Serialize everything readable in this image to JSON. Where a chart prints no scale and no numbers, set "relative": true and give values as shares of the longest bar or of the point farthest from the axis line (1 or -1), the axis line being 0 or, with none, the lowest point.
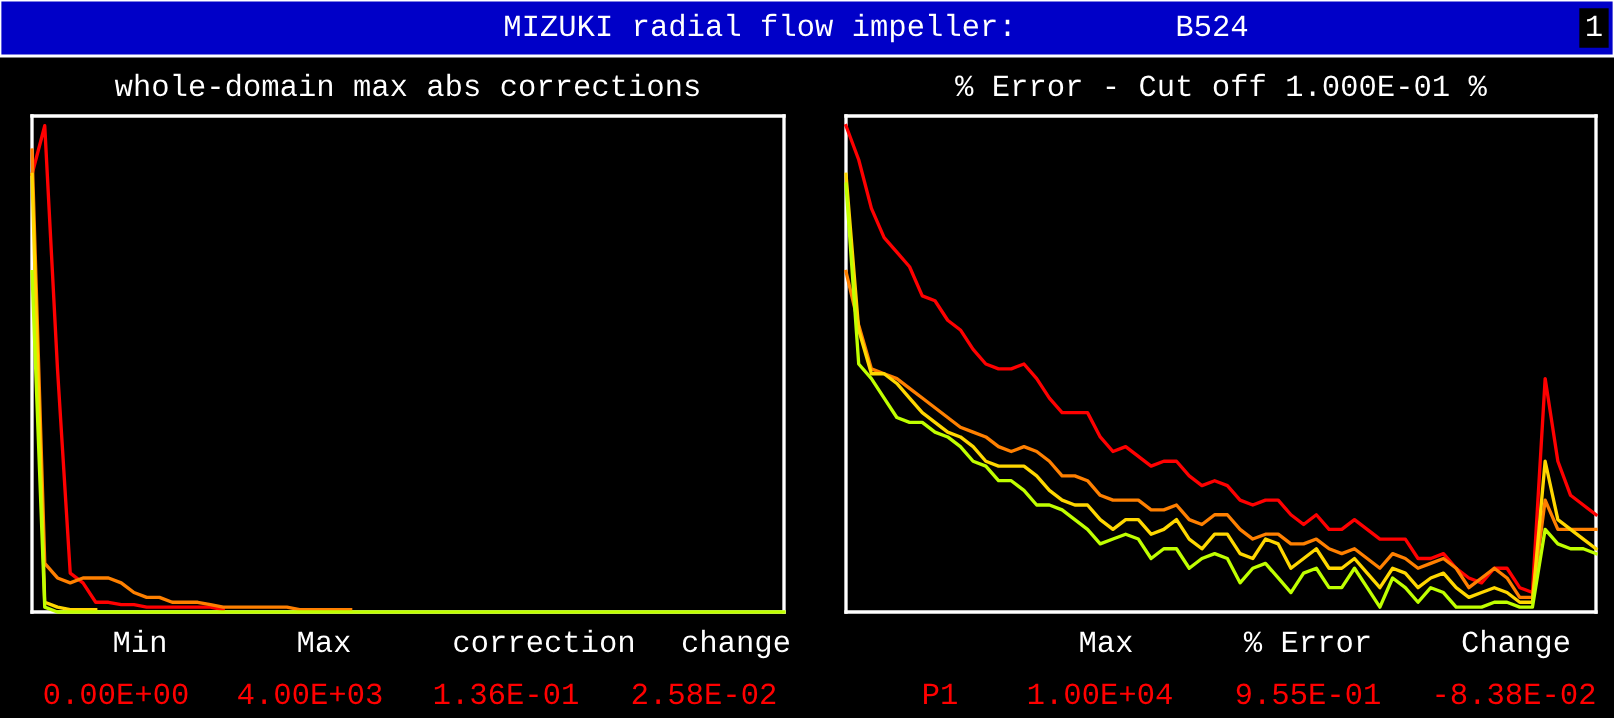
{
  "chart_data": [
    {
      "type": "line",
      "relative": true,
      "title": "whole-domain max abs corrections",
      "categories": [
        null,
        null,
        null,
        null,
        null,
        null,
        null,
        null,
        null,
        null,
        null,
        null,
        null,
        null,
        null,
        null,
        null,
        null,
        null,
        null,
        null,
        null,
        null,
        null,
        null,
        null,
        null,
        null,
        null,
        null,
        null,
        null,
        null,
        null,
        null,
        null,
        null,
        null,
        null,
        null,
        null,
        null,
        null,
        null,
        null,
        null,
        null,
        null,
        null,
        null,
        null,
        null,
        null,
        null,
        null,
        null,
        null,
        null,
        null,
        null
      ],
      "series": [
        {
          "color": "#ff0000",
          "values": [
            0.9,
            1.0,
            0.5,
            0.08,
            0.06,
            0.02,
            0.02,
            0.015,
            0.015,
            0.01,
            0.01,
            0.01,
            0.01,
            0.01,
            0.01,
            0.005,
            null,
            null,
            null,
            null,
            null,
            null,
            null,
            null,
            null,
            null,
            null,
            null,
            null,
            null,
            null,
            null,
            null,
            null,
            null,
            null,
            null,
            null,
            null,
            null,
            null,
            null,
            null,
            null,
            null,
            null,
            null,
            null,
            null,
            null,
            null,
            null,
            null,
            null,
            null,
            null,
            null,
            null,
            null,
            null
          ]
        },
        {
          "color": "#ff8000",
          "values": [
            0.95,
            0.1,
            0.07,
            0.06,
            0.07,
            0.07,
            0.07,
            0.06,
            0.04,
            0.03,
            0.03,
            0.02,
            0.02,
            0.02,
            0.015,
            0.01,
            0.01,
            0.01,
            0.01,
            0.01,
            0.01,
            0.005,
            0.005,
            0.005,
            0.005,
            0.005,
            null,
            null,
            null,
            null,
            null,
            null,
            null,
            null,
            null,
            null,
            null,
            null,
            null,
            null,
            null,
            null,
            null,
            null,
            null,
            null,
            null,
            null,
            null,
            null,
            null,
            null,
            null,
            null,
            null,
            null,
            null,
            null,
            null,
            null
          ]
        },
        {
          "color": "#ffd700",
          "values": [
            0.9,
            0.02,
            0.01,
            0.005,
            0.005,
            0.005,
            null,
            null,
            null,
            null,
            null,
            null,
            null,
            null,
            null,
            null,
            null,
            null,
            null,
            null,
            null,
            null,
            null,
            null,
            null,
            null,
            null,
            null,
            null,
            null,
            null,
            null,
            null,
            null,
            null,
            null,
            null,
            null,
            null,
            null,
            null,
            null,
            null,
            null,
            null,
            null,
            null,
            null,
            null,
            null,
            null,
            null,
            null,
            null,
            null,
            null,
            null,
            null,
            null,
            null
          ]
        },
        {
          "color": "#c0ff00",
          "values": [
            0.7,
            0.01,
            0,
            0,
            0,
            0,
            0,
            0,
            0,
            0,
            0,
            0,
            0,
            0,
            0,
            0,
            0,
            0,
            0,
            0,
            0,
            0,
            0,
            0,
            0,
            0,
            0,
            0,
            0,
            0,
            0,
            0,
            0,
            0,
            0,
            0,
            0,
            0,
            0,
            0,
            0,
            0,
            0,
            0,
            0,
            0,
            0,
            0,
            0,
            0,
            0,
            0,
            0,
            0,
            0,
            0,
            0,
            0,
            0,
            0
          ]
        }
      ],
      "annotations": [
        "MIZUKI radial flow impeller:",
        "B524",
        "1",
        "Min",
        "Max",
        "correction",
        "change",
        "0.00E+00",
        "4.00E+03",
        "1.36E-01",
        "2.58E-02"
      ]
    },
    {
      "type": "line",
      "relative": true,
      "title": "% Error - Cut off 1.000E-01 %",
      "categories": [
        null,
        null,
        null,
        null,
        null,
        null,
        null,
        null,
        null,
        null,
        null,
        null,
        null,
        null,
        null,
        null,
        null,
        null,
        null,
        null,
        null,
        null,
        null,
        null,
        null,
        null,
        null,
        null,
        null,
        null,
        null,
        null,
        null,
        null,
        null,
        null,
        null,
        null,
        null,
        null,
        null,
        null,
        null,
        null,
        null,
        null,
        null,
        null,
        null,
        null,
        null,
        null,
        null,
        null,
        null,
        null,
        null,
        null,
        null,
        null
      ],
      "series": [
        {
          "color": "#ff0000",
          "values": [
            1.0,
            0.93,
            0.83,
            0.77,
            0.74,
            0.71,
            0.65,
            0.64,
            0.6,
            0.58,
            0.54,
            0.51,
            0.5,
            0.5,
            0.51,
            0.48,
            0.44,
            0.41,
            0.41,
            0.41,
            0.36,
            0.33,
            0.34,
            0.32,
            0.3,
            0.31,
            0.31,
            0.28,
            0.26,
            0.27,
            0.26,
            0.23,
            0.22,
            0.23,
            0.23,
            0.2,
            0.18,
            0.2,
            0.17,
            0.17,
            0.19,
            0.17,
            0.15,
            0.15,
            0.15,
            0.11,
            0.11,
            0.12,
            0.09,
            0.07,
            0.06,
            0.09,
            0.09,
            0.05,
            0.04,
            0.48,
            0.31,
            0.24,
            0.22,
            0.2
          ]
        },
        {
          "color": "#ff8000",
          "values": [
            0.7,
            0.59,
            0.5,
            0.49,
            0.48,
            0.46,
            0.44,
            0.42,
            0.4,
            0.38,
            0.37,
            0.36,
            0.34,
            0.33,
            0.34,
            0.33,
            0.31,
            0.28,
            0.28,
            0.27,
            0.24,
            0.23,
            0.23,
            0.23,
            0.21,
            0.21,
            0.22,
            0.19,
            0.18,
            0.2,
            0.2,
            0.17,
            0.15,
            0.16,
            0.16,
            0.14,
            0.14,
            0.15,
            0.13,
            0.12,
            0.13,
            0.11,
            0.09,
            0.12,
            0.11,
            0.09,
            0.1,
            0.11,
            0.09,
            0.05,
            0.07,
            0.09,
            0.07,
            0.03,
            0.03,
            0.23,
            0.17,
            0.17,
            0.17,
            0.17
          ]
        },
        {
          "color": "#ffd700",
          "values": [
            0.9,
            0.58,
            0.49,
            0.49,
            0.47,
            0.44,
            0.41,
            0.39,
            0.37,
            0.36,
            0.34,
            0.31,
            0.3,
            0.3,
            0.3,
            0.28,
            0.25,
            0.23,
            0.22,
            0.22,
            0.19,
            0.17,
            0.19,
            0.19,
            0.16,
            0.17,
            0.19,
            0.15,
            0.13,
            0.16,
            0.16,
            0.12,
            0.11,
            0.15,
            0.14,
            0.09,
            0.11,
            0.13,
            0.09,
            0.09,
            0.11,
            0.08,
            0.05,
            0.09,
            0.08,
            0.05,
            0.07,
            0.08,
            0.05,
            0.03,
            0.04,
            0.05,
            0.04,
            0.02,
            0.02,
            0.31,
            0.19,
            0.17,
            0.15,
            0.13
          ]
        },
        {
          "color": "#c0ff00",
          "values": [
            0.88,
            0.51,
            0.48,
            0.44,
            0.4,
            0.39,
            0.39,
            0.37,
            0.36,
            0.34,
            0.31,
            0.3,
            0.27,
            0.27,
            0.25,
            0.22,
            0.22,
            0.21,
            0.19,
            0.17,
            0.14,
            0.15,
            0.16,
            0.15,
            0.11,
            0.13,
            0.13,
            0.09,
            0.11,
            0.12,
            0.11,
            0.06,
            0.09,
            0.1,
            0.07,
            0.04,
            0.08,
            0.09,
            0.05,
            0.05,
            0.09,
            0.05,
            0.01,
            0.07,
            0.05,
            0.02,
            0.05,
            0.04,
            0.01,
            0.01,
            0.01,
            0.02,
            0.02,
            0.01,
            0.01,
            0.17,
            0.14,
            0.13,
            0.13,
            0.12
          ]
        }
      ],
      "annotations": [
        "Max",
        "% Error",
        "Change",
        "P1",
        "1.00E+04",
        "9.55E-01",
        "-8.38E-02"
      ]
    }
  ]
}
